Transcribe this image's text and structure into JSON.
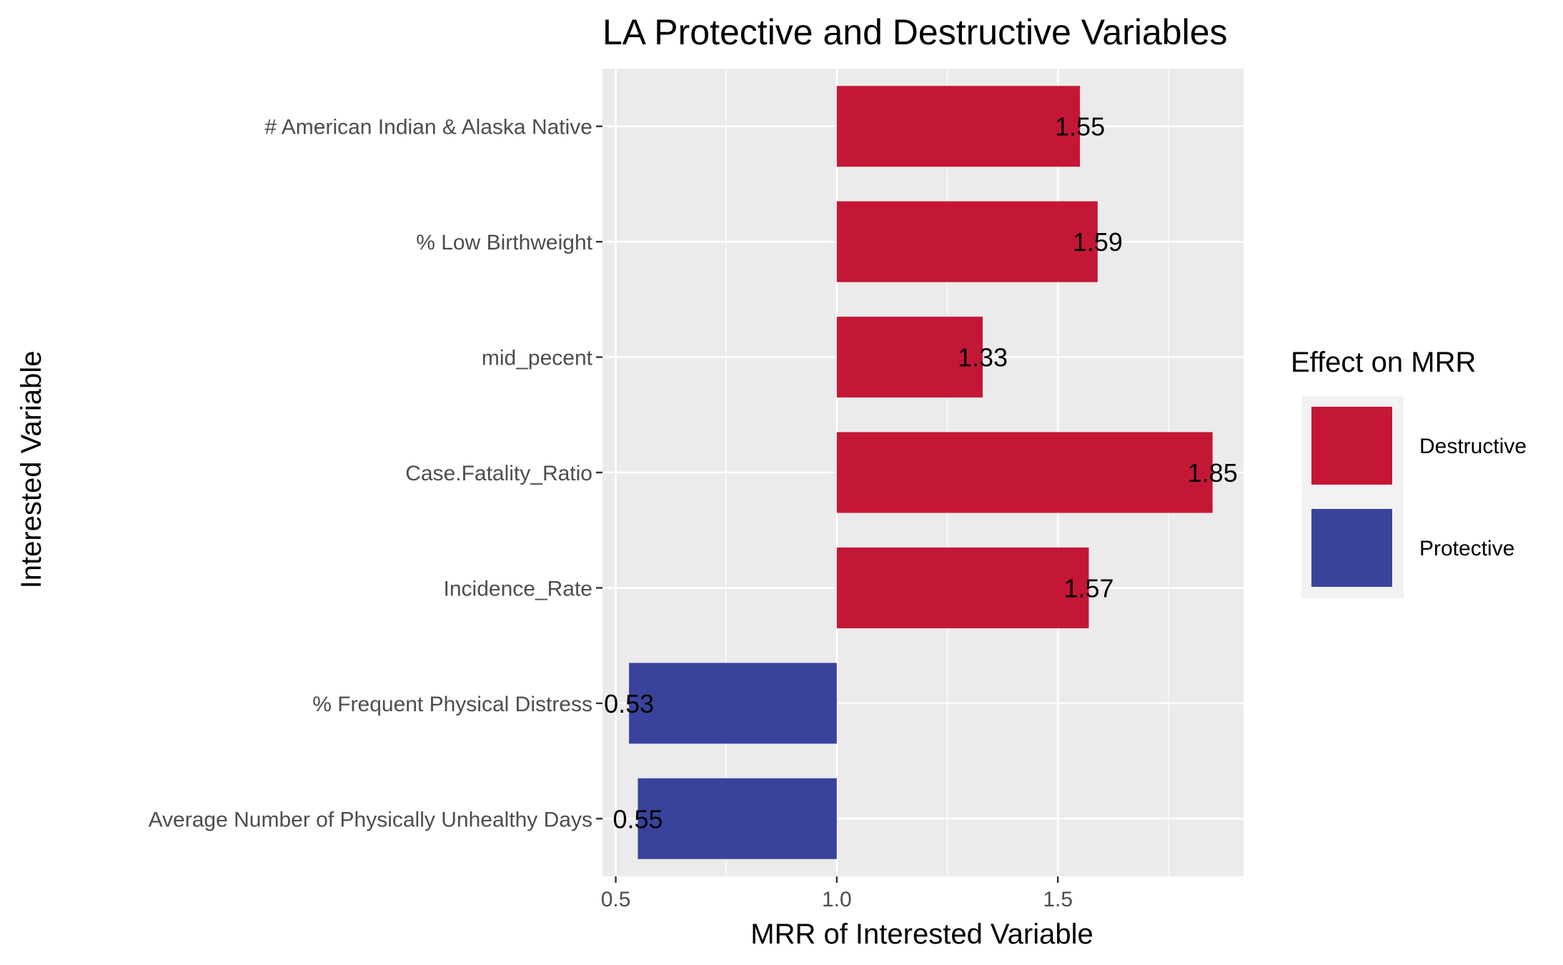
{
  "chart_data": {
    "type": "bar",
    "orientation": "horizontal",
    "title": "LA Protective and Destructive Variables",
    "xlabel": "MRR of Interested Variable",
    "ylabel": "Interested Variable",
    "baseline": 1.0,
    "xlim": [
      0.47,
      1.92
    ],
    "xticks": [
      0.5,
      1.0,
      1.5
    ],
    "xtick_labels": [
      "0.5",
      "1.0",
      "1.5"
    ],
    "grid": true,
    "categories": [
      "# American Indian & Alaska Native",
      "% Low Birthweight",
      "mid_pecent",
      "Case.Fatality_Ratio",
      "Incidence_Rate",
      "% Frequent Physical Distress",
      "Average Number of Physically Unhealthy Days"
    ],
    "values": [
      1.55,
      1.59,
      1.33,
      1.85,
      1.57,
      0.53,
      0.55
    ],
    "value_labels": [
      "1.55",
      "1.59",
      "1.33",
      "1.85",
      "1.57",
      "0.53",
      "0.55"
    ],
    "effects": [
      "Destructive",
      "Destructive",
      "Destructive",
      "Destructive",
      "Destructive",
      "Protective",
      "Protective"
    ],
    "legend": {
      "title": "Effect on MRR",
      "position": "right",
      "entries": [
        {
          "label": "Destructive",
          "color": "#C41736"
        },
        {
          "label": "Protective",
          "color": "#3A439C"
        }
      ]
    },
    "colors": {
      "Destructive": "#C41736",
      "Protective": "#3A439C",
      "panel_background": "#EBEBEB",
      "grid": "#FFFFFF"
    }
  }
}
